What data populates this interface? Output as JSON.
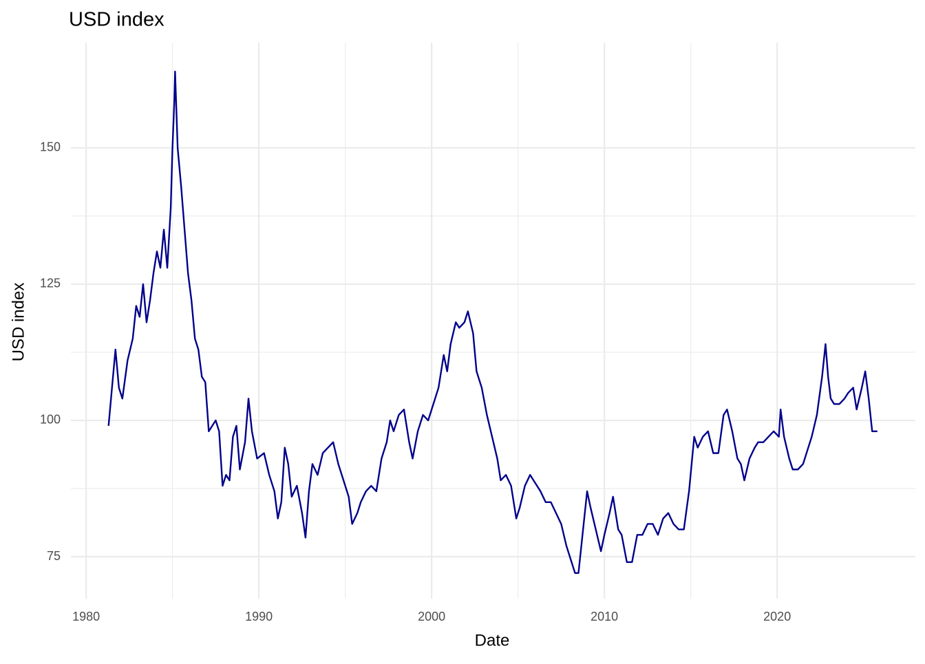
{
  "chart_data": {
    "type": "line",
    "title": "USD index",
    "x_label": "Date",
    "y_label": "USD index",
    "color": "#00008b",
    "grid": true,
    "grid_minor": true,
    "xlim": [
      1979.12,
      2028.0
    ],
    "xticks": [
      1980,
      1990,
      2000,
      2010,
      2020
    ],
    "ylim": [
      67.3,
      169.3
    ],
    "yticks": [
      75,
      100,
      125,
      150
    ],
    "x": [
      1981.3,
      1981.5,
      1981.7,
      1981.9,
      1982.1,
      1982.4,
      1982.7,
      1982.9,
      1983.1,
      1983.3,
      1983.5,
      1983.7,
      1983.9,
      1984.1,
      1984.3,
      1984.5,
      1984.7,
      1984.9,
      1985.0,
      1985.1,
      1985.15,
      1985.3,
      1985.5,
      1985.7,
      1985.9,
      1986.1,
      1986.3,
      1986.5,
      1986.7,
      1986.9,
      1987.1,
      1987.3,
      1987.5,
      1987.7,
      1987.9,
      1988.1,
      1988.3,
      1988.5,
      1988.7,
      1988.9,
      1989.2,
      1989.4,
      1989.6,
      1989.9,
      1990.3,
      1990.6,
      1990.9,
      1991.1,
      1991.3,
      1991.5,
      1991.7,
      1991.9,
      1992.2,
      1992.5,
      1992.7,
      1992.9,
      1993.1,
      1993.4,
      1993.7,
      1994.0,
      1994.3,
      1994.6,
      1994.9,
      1995.2,
      1995.4,
      1995.7,
      1995.9,
      1996.2,
      1996.5,
      1996.8,
      1997.1,
      1997.4,
      1997.6,
      1997.8,
      1998.1,
      1998.4,
      1998.7,
      1998.9,
      1999.2,
      1999.5,
      1999.8,
      2000.1,
      2000.4,
      2000.7,
      2000.9,
      2001.1,
      2001.4,
      2001.6,
      2001.9,
      2002.1,
      2002.4,
      2002.6,
      2002.9,
      2003.2,
      2003.5,
      2003.8,
      2004.0,
      2004.3,
      2004.6,
      2004.9,
      2005.1,
      2005.4,
      2005.7,
      2005.9,
      2006.3,
      2006.6,
      2006.9,
      2007.2,
      2007.5,
      2007.8,
      2008.0,
      2008.3,
      2008.5,
      2008.8,
      2009.0,
      2009.2,
      2009.5,
      2009.8,
      2010.0,
      2010.3,
      2010.5,
      2010.8,
      2011.0,
      2011.3,
      2011.6,
      2011.9,
      2012.2,
      2012.5,
      2012.8,
      2013.1,
      2013.4,
      2013.7,
      2014.0,
      2014.3,
      2014.6,
      2014.9,
      2015.2,
      2015.4,
      2015.7,
      2016.0,
      2016.3,
      2016.6,
      2016.9,
      2017.1,
      2017.4,
      2017.7,
      2017.9,
      2018.1,
      2018.4,
      2018.7,
      2018.9,
      2019.2,
      2019.5,
      2019.8,
      2020.1,
      2020.2,
      2020.4,
      2020.7,
      2020.9,
      2021.2,
      2021.5,
      2021.8,
      2022.0,
      2022.3,
      2022.6,
      2022.8,
      2022.95,
      2023.1,
      2023.3,
      2023.6,
      2023.9,
      2024.1,
      2024.4,
      2024.6,
      2024.9,
      2025.1,
      2025.3,
      2025.5,
      2025.8
    ],
    "values": [
      99,
      106,
      113,
      106,
      104,
      111,
      115,
      121,
      119,
      125,
      118,
      122,
      127,
      131,
      128,
      135,
      128,
      139,
      150,
      158,
      164,
      150,
      143,
      135,
      127,
      122,
      115,
      113,
      108,
      107,
      98,
      99,
      100,
      98,
      88,
      90,
      89,
      97,
      99,
      91,
      96,
      104,
      98,
      93,
      94,
      90,
      87,
      82,
      85,
      95,
      92,
      86,
      88,
      83,
      78.5,
      87,
      92,
      90,
      94,
      95,
      96,
      92,
      89,
      86,
      81,
      83,
      85,
      87,
      88,
      87,
      93,
      96,
      100,
      98,
      101,
      102,
      96,
      93,
      98,
      101,
      100,
      103,
      106,
      112,
      109,
      114,
      118,
      117,
      118,
      120,
      116,
      109,
      106,
      101,
      97,
      93,
      89,
      90,
      88,
      82,
      84,
      88,
      90,
      89,
      87,
      85,
      85,
      83,
      81,
      77,
      75,
      72,
      72,
      81,
      87,
      84,
      80,
      76,
      79,
      83,
      86,
      80,
      79,
      74,
      74,
      79,
      79,
      81,
      81,
      79,
      82,
      83,
      81,
      80,
      80,
      87,
      97,
      95,
      97,
      98,
      94,
      94,
      101,
      102,
      98,
      93,
      92,
      89,
      93,
      95,
      96,
      96,
      97,
      98,
      97,
      102,
      97,
      93,
      91,
      91,
      92,
      95,
      97,
      101,
      108,
      114,
      108,
      104,
      103,
      103,
      104,
      105,
      106,
      102,
      106,
      109,
      104,
      98,
      98
    ]
  }
}
